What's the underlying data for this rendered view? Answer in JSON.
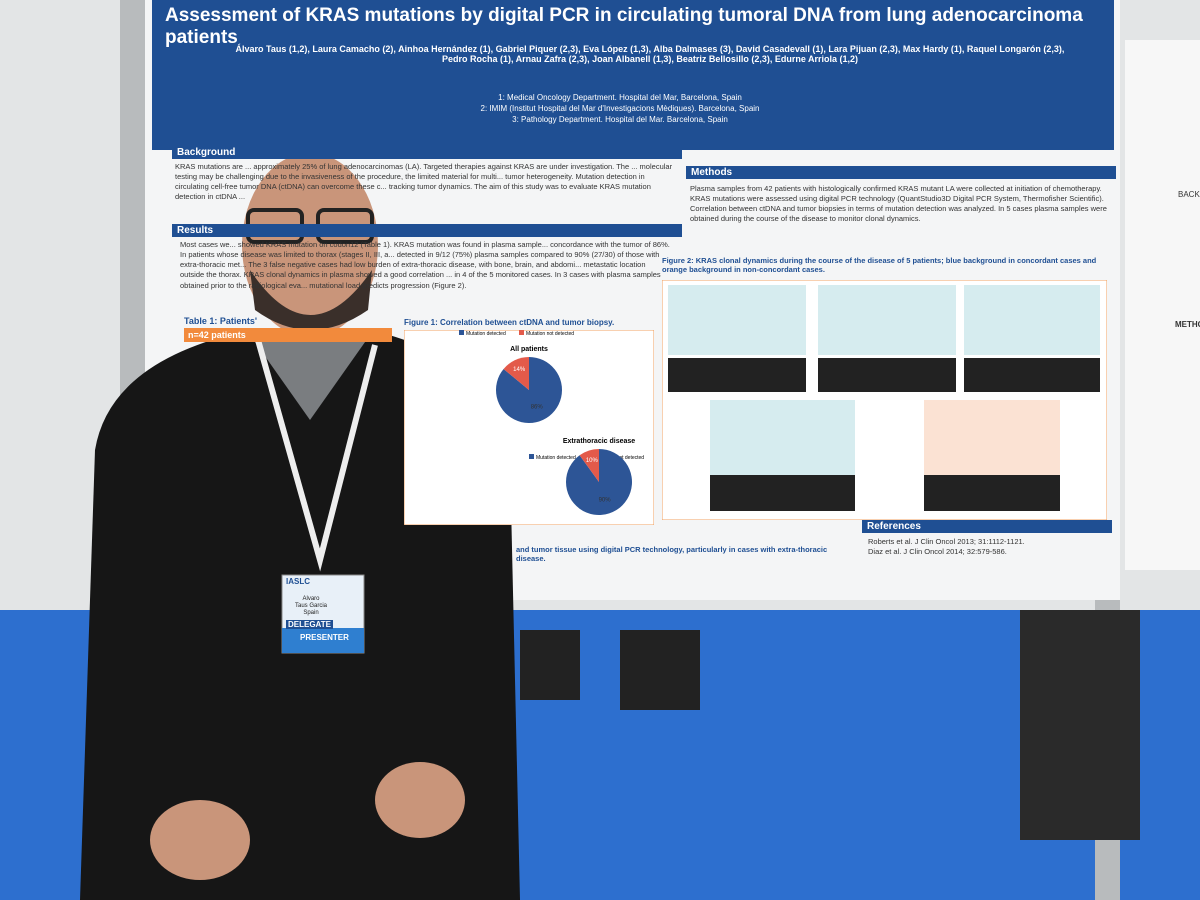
{
  "poster": {
    "title": "Assessment of KRAS mutations by digital PCR in circulating tumoral DNA from lung adenocarcinoma patients",
    "authors": [
      "Álvaro Taus (1,2), Laura Camacho (2), Ainhoa Hernández (1), Gabriel Piquer (2,3), Eva López (1,3), Alba Dalmases (3), David Casadevall (1), Lara Pijuan (2,3), Max Hardy (1), Raquel Longarón (2,3),",
      "Pedro Rocha (1), Arnau Zafra (2,3), Joan Albanell (1,3), Beatriz Bellosillo (2,3), Edurne Arriola (1,2)"
    ],
    "affiliations": [
      "1: Medical Oncology Department. Hospital del Mar, Barcelona, Spain",
      "2: IMIM (Institut Hospital del Mar d'Investigacions Mèdiques). Barcelona, Spain",
      "3: Pathology Department. Hospital del Mar. Barcelona, Spain"
    ],
    "background": {
      "heading": "Background",
      "text": "KRAS mutations are ... approximately 25% of lung adenocarcinomas (LA). Targeted therapies against KRAS are under investigation. The ... molecular testing may be challenging due to the invasiveness of the procedure, the limited material for multi... tumor heterogeneity. Mutation detection in circulating cell-free tumor DNA (ctDNA) can overcome these c... tracking tumor dynamics. The aim of this study was to evaluate KRAS mutation detection in ctDNA ..."
    },
    "methods": {
      "heading": "Methods",
      "text": "Plasma samples from 42 patients with histologically confirmed KRAS mutant LA were collected at initiation of chemotherapy. KRAS mutations were assessed using digital PCR technology (QuantStudio3D Digital PCR System, Thermofisher Scientific). Correlation between ctDNA and tumor biopsies in terms of mutation detection was analyzed. In 5 cases plasma samples were obtained during the course of the disease to monitor clonal dynamics."
    },
    "results": {
      "heading": "Results",
      "text": "Most cases we... showed KRAS mutation on codon12 (Table 1). KRAS mutation was found in plasma sample... concordance with the tumor of 86%. In patients whose disease was limited to thorax (stages II, III, a... detected in 9/12 (75%) plasma samples compared to 90% (27/30) of those with extra-thoracic met... The 3 false negative cases had low burden of extra-thoracic disease, with bone, brain, and abdomi... metastatic location outside the thorax. KRAS clonal dynamics in plasma showed a good correlation ... in 4 of the 5 monitored cases. In 3 cases with plasma samples obtained prior to the radiological eva... mutational load predicts progression (Figure 2).",
      "table_caption": "Table 1: Patients'",
      "table_cell": "n=42 patients"
    },
    "figure1": {
      "caption": "Figure 1: Correlation between ctDNA and tumor biopsy.",
      "legend": [
        "Mutation detected",
        "Mutation not detected"
      ],
      "colors": [
        "#2d5596",
        "#e35a4a"
      ],
      "pies": [
        {
          "title": "All patients",
          "values": [
            86,
            14
          ],
          "value_labels": [
            "86%",
            "14%"
          ]
        },
        {
          "title": "Extrathoracic disease",
          "values": [
            90,
            10
          ],
          "value_labels": [
            "90%",
            "10%"
          ]
        }
      ]
    },
    "figure2": {
      "caption": "Figure 2: KRAS clonal dynamics during the course of the disease of 5 patients; blue background in concordant cases and orange background in non-concordant cases."
    },
    "references": {
      "heading": "References",
      "items": [
        "Roberts et al. J Clin Oncol 2013; 31:1112-1121.",
        "Diaz et al. J Clin Oncol 2014; 32:579-586."
      ]
    },
    "conclusion": "and tumor tissue using digital PCR technology, particularly in cases with extra-thoracic disease."
  },
  "side_poster": {
    "headings": [
      "BACK",
      "METHO"
    ]
  },
  "badge": {
    "org": "IASLC",
    "first_name": "Alvaro",
    "last_name": "Taus Garcia",
    "country": "Spain",
    "role1": "DELEGATE",
    "role2": "PRESENTER"
  }
}
